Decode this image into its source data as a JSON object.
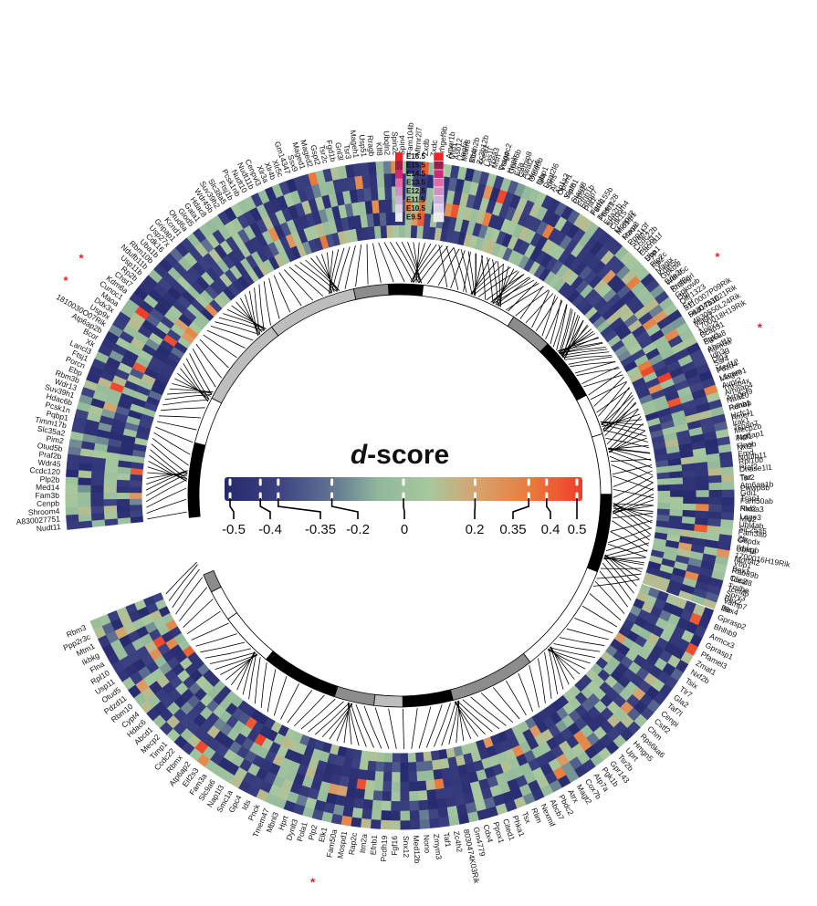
{
  "chart_data": {
    "type": "heatmap",
    "layout": "circular",
    "colorbar": {
      "title_italic": "d",
      "title_rest": "-score",
      "ticks": [
        "-0.5",
        "-0.4",
        "-0.35",
        "-0.2",
        "0",
        "0.2",
        "0.35",
        "0.4",
        "0.5"
      ],
      "tick_values": [
        -0.5,
        -0.4,
        -0.35,
        -0.2,
        0,
        0.2,
        0.35,
        0.4,
        0.5
      ],
      "range": [
        -0.5,
        0.5
      ],
      "colors": [
        "#262a6e",
        "#3a3f80",
        "#5d6e90",
        "#8fb79a",
        "#a7c89f",
        "#d9a06a",
        "#ea7a3a",
        "#f03c2a"
      ]
    },
    "stages": {
      "labels": [
        "E16.5",
        "E15.5",
        "E14.5",
        "E13.5",
        "E12.5",
        "E11.5",
        "E10.5",
        "E9.5"
      ],
      "colors": [
        "#f0222a",
        "#9e1d4f",
        "#cc2a77",
        "#e46aa8",
        "#cf8fc2",
        "#cdb0d6",
        "#dcd2e7",
        "#ecebf2"
      ]
    },
    "segment_a": {
      "genes": [
        "Mid1",
        "Vegfa",
        "Mbs",
        "Tcea1",
        "Tcea3",
        "Trappc2",
        "Gpm6b",
        "Gemin8",
        "Morc4",
        "Gla",
        "Sms",
        "Ap1s2",
        "Slain1",
        "Ctps2",
        "Rbbp7",
        "Fgd1",
        "Pbdc1",
        "Shroom4",
        "Mospd2",
        "Maoa",
        "Syap1",
        "Ercc6l",
        "Uba1",
        "Rp2",
        "Kdm5c",
        "Eda2r",
        "Sh3bgrl",
        "Ogt",
        "Eef",
        "Hsd17b10",
        "Magt1",
        "Apex2",
        "Pgk1",
        "Kdm6a",
        "Dlg3",
        "Med12",
        "Magee1",
        "Tmsb4x",
        "Arhgef9",
        "Pdha1",
        "Amer1",
        "Tspan7",
        "Atp6ap1",
        "Nxt2",
        "Ndufb11",
        "Praf2",
        "Tsr2",
        "Pwwp3b",
        "Trap1",
        "Nxf2",
        "Mid2",
        "Slc25a5",
        "Zfx",
        "Ubl4a",
        "Morf4l2",
        "Bex1",
        "Tceal8",
        "Tceal6",
        "Bex2",
        "Bex4",
        "Gprasp2",
        "Bhlhb9",
        "Armcx3",
        "Gprasp1",
        "Pfamel3",
        "Zmat1",
        "Nxf2b",
        "Tsix",
        "Tlr7",
        "Gla2",
        "Taf7l",
        "Cenpi",
        "Cstf2",
        "Chm",
        "Rps6ka6",
        "Hmgn5",
        "Uprt",
        "Tsr2b",
        "Gpr143",
        "Pgk1b",
        "Atp7a",
        "Cox7b",
        "Magt2",
        "Atrx",
        "Pbdc2",
        "Abcb7",
        "Nexmif",
        "Rlim",
        "Tsx",
        "Phka1",
        "Cited1",
        "Ppox1",
        "Cdx4",
        "Gm4779",
        "8030474K03Rik",
        "Zc4h2",
        "Taf1",
        "Zmym3",
        "Nono",
        "Med12b",
        "Snx12",
        "Fgf16",
        "Pcdh19",
        "Efnb1",
        "Itm2a",
        "Rap2c",
        "Mospd1",
        "Fam50a",
        "Elk1",
        "Plp2",
        "Pola1",
        "Dynlt3",
        "Hprt",
        "Mbnl3",
        "Tmem47",
        "Pnck",
        "Ids",
        "Gpc4",
        "Smc1a",
        "Nap1l3",
        "Slc9a6",
        "Fam3a",
        "Eif2s3",
        "Atp6ap2",
        "Rbmx",
        "Ccdc22",
        "Timp1",
        "Mecp2",
        "Abcd1",
        "Hdac6",
        "Cypt4",
        "Rbm10",
        "Pdzd11",
        "Otud5",
        "Usp11",
        "Rpl10",
        "Flna",
        "Ikbkg",
        "Mtm1",
        "Ppp2r3c",
        "Rbm3"
      ],
      "rows": 8,
      "angle_start": 8,
      "angle_end": 248,
      "seed": 7
    },
    "segment_b": {
      "genes": [
        "Nudt11",
        "A830027751",
        "Shroom4",
        "Cenpb",
        "Fam3b",
        "Med14",
        "Plp2b",
        "Ccdc120",
        "Wdr45",
        "Praf2b",
        "Otud5b",
        "Pim2",
        "Slc35a2",
        "Timm17b",
        "Pqbp1",
        "Pcsk1n",
        "Hdac6b",
        "Suv39h1",
        "Wdr13",
        "Rbm3b",
        "Ebp",
        "Porcn",
        "Ftsj1",
        "Lancl3",
        "Xk",
        "Bcor",
        "Atp6ap2b",
        "1810030O07Rik",
        "Usp9x",
        "Ddx3x",
        "Maoa",
        "Cunoc1",
        "Kdm6a",
        "Chst7",
        "Rp2b",
        "Usp11b",
        "Ndufb11b",
        "Rbm10b",
        "Uba1b",
        "Cdk16",
        "Usp27x",
        "Gripap1",
        "Kcnd1",
        "Otud6a",
        "Glod5",
        "Gata1",
        "Hdac8",
        "Wdr45b",
        "Suv39h2",
        "Slc38a5",
        "Ftsj1b",
        "Pcsk1nb",
        "Nudt10",
        "Nudt11b",
        "Cenpvl3",
        "Xlr3a",
        "Xlr4b",
        "Xlr5c",
        "Gm14347",
        "Ssx9",
        "Maged1",
        "Maged2",
        "Gspt2",
        "Tsr2c",
        "Fgd1b",
        "Gnl3l",
        "Tsr3",
        "Mageh1",
        "Usp51",
        "Rragb",
        "Klf8",
        "Ubqln2",
        "Spin2c",
        "Spin4",
        "Fam104b",
        "Mtrnr2l7",
        "Zxdb",
        "Zxdc",
        "Arhgef9b",
        "Amer1b",
        "Asb12",
        "Mtmr8",
        "Zc4h2b",
        "Zc3h12b",
        "Las1l",
        "Msn",
        "Vsig4",
        "Heph",
        "Eda",
        "Awat2",
        "Otud6b",
        "Igbp1",
        "Dgat2l6",
        "Ar",
        "Ophn1",
        "Yipf6",
        "Stard8",
        "Efnb1b",
        "Pja1",
        "Fam155b",
        "Tmem28",
        "Eda2rb",
        "Cdk15",
        "Mid1ip1",
        "Foxp3",
        "Ppp1r3f",
        "Ccdc22b",
        "Cacna1f",
        "Syp",
        "Plp2c",
        "Magix",
        "Gpkow",
        "Wdr45c",
        "Praf2c",
        "Gpkowb",
        "Olfr1323",
        "3110007P09Rik",
        "5430433E21Rik",
        "4930550L24Rik",
        "1700018H19Rik",
        "Bcap31",
        "Slc6a8",
        "Abcd1b",
        "Idh3g",
        "Ssr4",
        "Pdzd4",
        "L1cam",
        "Avpr2",
        "Arhgap4",
        "Naa10",
        "Renbp",
        "Hcfc1",
        "Irak1",
        "Mecp2b",
        "Tktl1",
        "Flnab",
        "Emd",
        "Rpl10b",
        "Dnase1l1",
        "Taz",
        "Atp6ap1b",
        "Gdi1",
        "Fam50ab",
        "Plxna3",
        "Lage3",
        "Ubl4ab",
        "Fam3ab",
        "G6pdx",
        "Ikbkgb",
        "1700016H19Rik",
        "Vbp1",
        "Rab39b",
        "Clic2",
        "Tmlhe",
        "Spry3",
        "Vamp7",
        "Il9r"
      ],
      "rows": 6,
      "angle_start": 264,
      "angle_end": 470,
      "seed": 19
    },
    "highlighted": [
      "Sh3bgrl",
      "Elk1",
      "Ddx3x",
      "Kdm6a"
    ],
    "inner_track": {
      "colors": [
        "#000000",
        "#ffffff",
        "#bdbdbd",
        "#8c8c8c"
      ]
    }
  }
}
